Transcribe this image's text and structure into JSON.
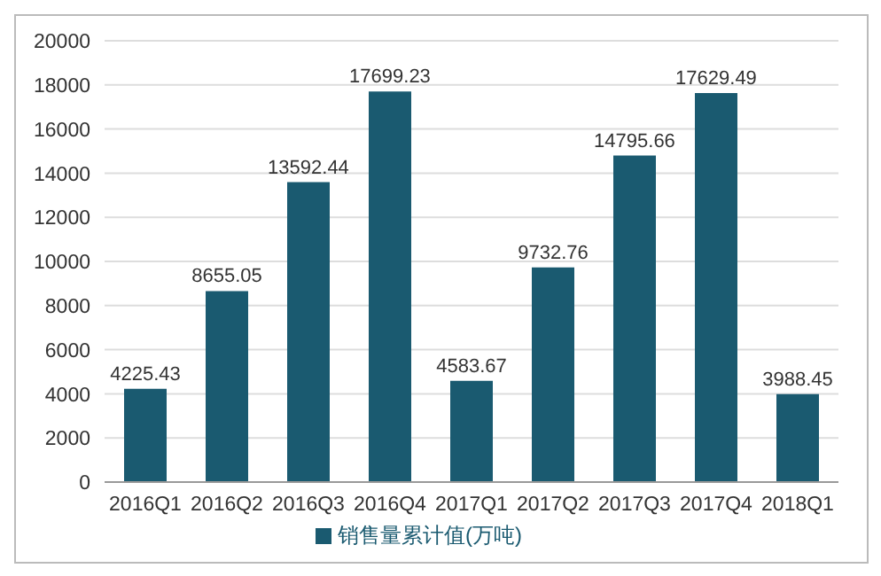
{
  "chart_data": {
    "type": "bar",
    "categories": [
      "2016Q1",
      "2016Q2",
      "2016Q3",
      "2016Q4",
      "2017Q1",
      "2017Q2",
      "2017Q3",
      "2017Q4",
      "2018Q1"
    ],
    "series": [
      {
        "name": "销售量累计值(万吨)",
        "color": "#1a5a70",
        "values": [
          4225.43,
          8655.05,
          13592.44,
          17699.23,
          4583.67,
          9732.76,
          14795.66,
          17629.49,
          3988.45
        ]
      }
    ],
    "ylim": [
      0,
      20000
    ],
    "yticks": [
      0,
      2000,
      4000,
      6000,
      8000,
      10000,
      12000,
      14000,
      16000,
      18000,
      20000
    ],
    "grid": "y",
    "legend": "bottom",
    "data_labels": true
  }
}
